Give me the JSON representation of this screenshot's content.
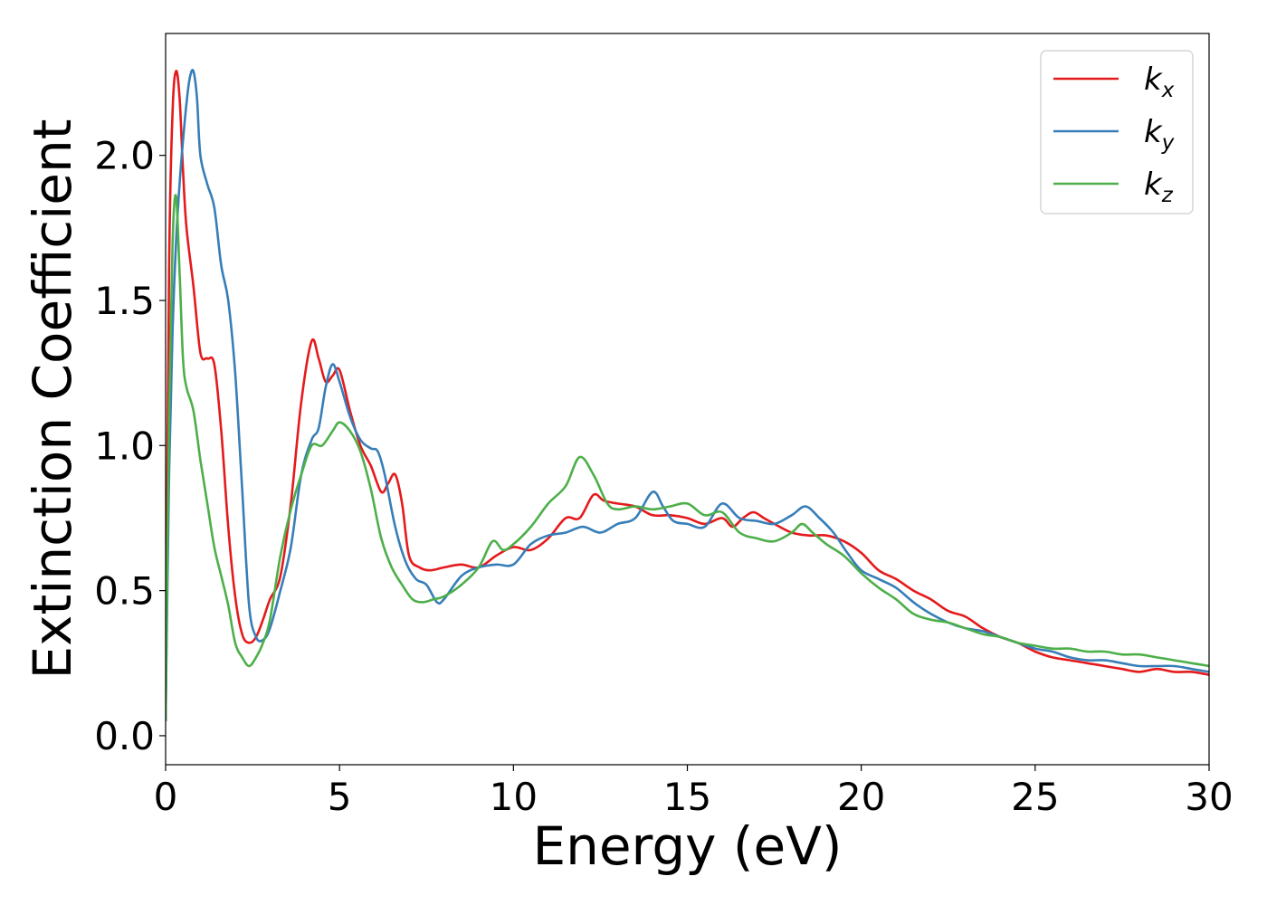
{
  "chart_data": {
    "type": "line",
    "xlabel": "Energy (eV)",
    "ylabel": "Extinction Coefficient",
    "xlim": [
      0,
      30
    ],
    "ylim": [
      -0.1,
      2.42
    ],
    "xticks": [
      0,
      5,
      10,
      15,
      20,
      25,
      30
    ],
    "xtick_labels": [
      "0",
      "5",
      "10",
      "15",
      "20",
      "25",
      "30"
    ],
    "yticks": [
      0.0,
      0.5,
      1.0,
      1.5,
      2.0
    ],
    "ytick_labels": [
      "0.0",
      "0.5",
      "1.0",
      "1.5",
      "2.0"
    ],
    "grid": false,
    "legend_position": "top-right",
    "series": [
      {
        "name": "kx",
        "label_base": "k",
        "label_sub": "x",
        "color": "#e41a1c",
        "x": [
          0,
          0.1,
          0.2,
          0.3,
          0.4,
          0.5,
          0.6,
          0.8,
          1.0,
          1.2,
          1.4,
          1.6,
          1.8,
          2.0,
          2.2,
          2.4,
          2.6,
          2.8,
          3.0,
          3.3,
          3.6,
          3.9,
          4.2,
          4.4,
          4.6,
          4.8,
          5.0,
          5.3,
          5.6,
          5.9,
          6.2,
          6.4,
          6.6,
          6.8,
          7.0,
          7.3,
          7.6,
          8.0,
          8.5,
          9.0,
          9.5,
          10.0,
          10.5,
          11.0,
          11.5,
          11.9,
          12.3,
          12.6,
          13.0,
          13.5,
          14.0,
          14.5,
          15.0,
          15.5,
          16.0,
          16.3,
          16.6,
          16.9,
          17.2,
          17.5,
          18.0,
          18.5,
          19.0,
          19.5,
          20.0,
          20.5,
          21.0,
          21.5,
          22.0,
          22.5,
          23.0,
          23.5,
          24.0,
          24.5,
          25.0,
          25.5,
          26.0,
          26.5,
          27.0,
          27.5,
          28.0,
          28.5,
          29.0,
          29.5,
          30.0
        ],
        "y": [
          0.05,
          1.6,
          2.15,
          2.29,
          2.2,
          1.95,
          1.75,
          1.55,
          1.32,
          1.3,
          1.28,
          1.05,
          0.72,
          0.48,
          0.35,
          0.32,
          0.34,
          0.4,
          0.47,
          0.55,
          0.8,
          1.15,
          1.36,
          1.3,
          1.22,
          1.24,
          1.26,
          1.12,
          1.0,
          0.93,
          0.84,
          0.87,
          0.9,
          0.8,
          0.62,
          0.58,
          0.57,
          0.58,
          0.59,
          0.58,
          0.62,
          0.65,
          0.64,
          0.68,
          0.75,
          0.75,
          0.83,
          0.81,
          0.8,
          0.79,
          0.76,
          0.76,
          0.75,
          0.73,
          0.75,
          0.72,
          0.75,
          0.77,
          0.75,
          0.73,
          0.7,
          0.69,
          0.69,
          0.67,
          0.63,
          0.57,
          0.54,
          0.5,
          0.47,
          0.43,
          0.41,
          0.37,
          0.34,
          0.32,
          0.29,
          0.27,
          0.26,
          0.25,
          0.24,
          0.23,
          0.22,
          0.23,
          0.22,
          0.22,
          0.21
        ]
      },
      {
        "name": "ky",
        "label_base": "k",
        "label_sub": "y",
        "color": "#377eb8",
        "x": [
          0,
          0.1,
          0.2,
          0.3,
          0.4,
          0.5,
          0.6,
          0.7,
          0.8,
          0.9,
          1.0,
          1.2,
          1.4,
          1.6,
          1.8,
          2.0,
          2.2,
          2.4,
          2.6,
          2.8,
          3.0,
          3.3,
          3.6,
          3.9,
          4.2,
          4.4,
          4.6,
          4.8,
          5.0,
          5.3,
          5.6,
          5.9,
          6.1,
          6.3,
          6.6,
          6.9,
          7.2,
          7.5,
          7.8,
          8.0,
          8.5,
          9.0,
          9.5,
          10.0,
          10.5,
          11.0,
          11.5,
          12.0,
          12.5,
          13.0,
          13.5,
          14.0,
          14.3,
          14.6,
          15.0,
          15.5,
          16.0,
          16.5,
          17.0,
          17.5,
          18.0,
          18.4,
          18.8,
          19.2,
          19.6,
          20.0,
          20.5,
          21.0,
          21.5,
          22.0,
          22.5,
          23.0,
          23.5,
          24.0,
          24.5,
          25.0,
          25.5,
          26.0,
          26.5,
          27.0,
          27.5,
          28.0,
          28.5,
          29.0,
          29.5,
          30.0
        ],
        "y": [
          0.05,
          0.9,
          1.4,
          1.7,
          1.9,
          2.05,
          2.18,
          2.27,
          2.29,
          2.2,
          2.0,
          1.9,
          1.82,
          1.62,
          1.5,
          1.25,
          0.85,
          0.45,
          0.34,
          0.33,
          0.37,
          0.5,
          0.65,
          0.9,
          1.02,
          1.06,
          1.2,
          1.28,
          1.22,
          1.1,
          1.02,
          0.99,
          0.98,
          0.9,
          0.72,
          0.6,
          0.54,
          0.52,
          0.46,
          0.47,
          0.55,
          0.58,
          0.59,
          0.59,
          0.66,
          0.69,
          0.7,
          0.72,
          0.7,
          0.73,
          0.75,
          0.84,
          0.79,
          0.74,
          0.73,
          0.72,
          0.8,
          0.75,
          0.74,
          0.73,
          0.76,
          0.79,
          0.75,
          0.7,
          0.63,
          0.57,
          0.54,
          0.51,
          0.46,
          0.42,
          0.39,
          0.37,
          0.36,
          0.34,
          0.32,
          0.3,
          0.29,
          0.27,
          0.26,
          0.26,
          0.25,
          0.24,
          0.24,
          0.24,
          0.23,
          0.22
        ]
      },
      {
        "name": "kz",
        "label_base": "k",
        "label_sub": "z",
        "color": "#4daf4a",
        "x": [
          0,
          0.1,
          0.2,
          0.3,
          0.4,
          0.5,
          0.6,
          0.8,
          1.0,
          1.2,
          1.4,
          1.6,
          1.8,
          2.0,
          2.2,
          2.4,
          2.6,
          2.8,
          3.0,
          3.3,
          3.6,
          3.9,
          4.2,
          4.5,
          4.8,
          5.0,
          5.3,
          5.6,
          5.9,
          6.2,
          6.5,
          6.8,
          7.1,
          7.4,
          7.7,
          8.0,
          8.5,
          9.0,
          9.4,
          9.7,
          10.0,
          10.5,
          11.0,
          11.5,
          11.9,
          12.3,
          12.7,
          13.0,
          13.5,
          14.0,
          14.5,
          15.0,
          15.5,
          16.0,
          16.5,
          17.0,
          17.5,
          18.0,
          18.3,
          18.6,
          19.0,
          19.5,
          20.0,
          20.5,
          21.0,
          21.5,
          22.0,
          22.5,
          23.0,
          23.5,
          24.0,
          24.5,
          25.0,
          25.5,
          26.0,
          26.5,
          27.0,
          27.5,
          28.0,
          28.5,
          29.0,
          29.5,
          30.0
        ],
        "y": [
          0.05,
          1.1,
          1.7,
          1.86,
          1.6,
          1.3,
          1.2,
          1.12,
          0.95,
          0.8,
          0.65,
          0.55,
          0.45,
          0.32,
          0.27,
          0.24,
          0.27,
          0.32,
          0.4,
          0.62,
          0.78,
          0.9,
          1.0,
          1.0,
          1.05,
          1.08,
          1.05,
          0.98,
          0.85,
          0.68,
          0.58,
          0.52,
          0.47,
          0.46,
          0.47,
          0.48,
          0.52,
          0.58,
          0.67,
          0.64,
          0.66,
          0.72,
          0.8,
          0.86,
          0.96,
          0.9,
          0.8,
          0.78,
          0.79,
          0.78,
          0.79,
          0.8,
          0.76,
          0.77,
          0.7,
          0.68,
          0.67,
          0.7,
          0.73,
          0.7,
          0.66,
          0.62,
          0.56,
          0.51,
          0.47,
          0.42,
          0.4,
          0.39,
          0.37,
          0.35,
          0.34,
          0.32,
          0.31,
          0.3,
          0.3,
          0.29,
          0.29,
          0.28,
          0.28,
          0.27,
          0.26,
          0.25,
          0.24
        ]
      }
    ]
  }
}
